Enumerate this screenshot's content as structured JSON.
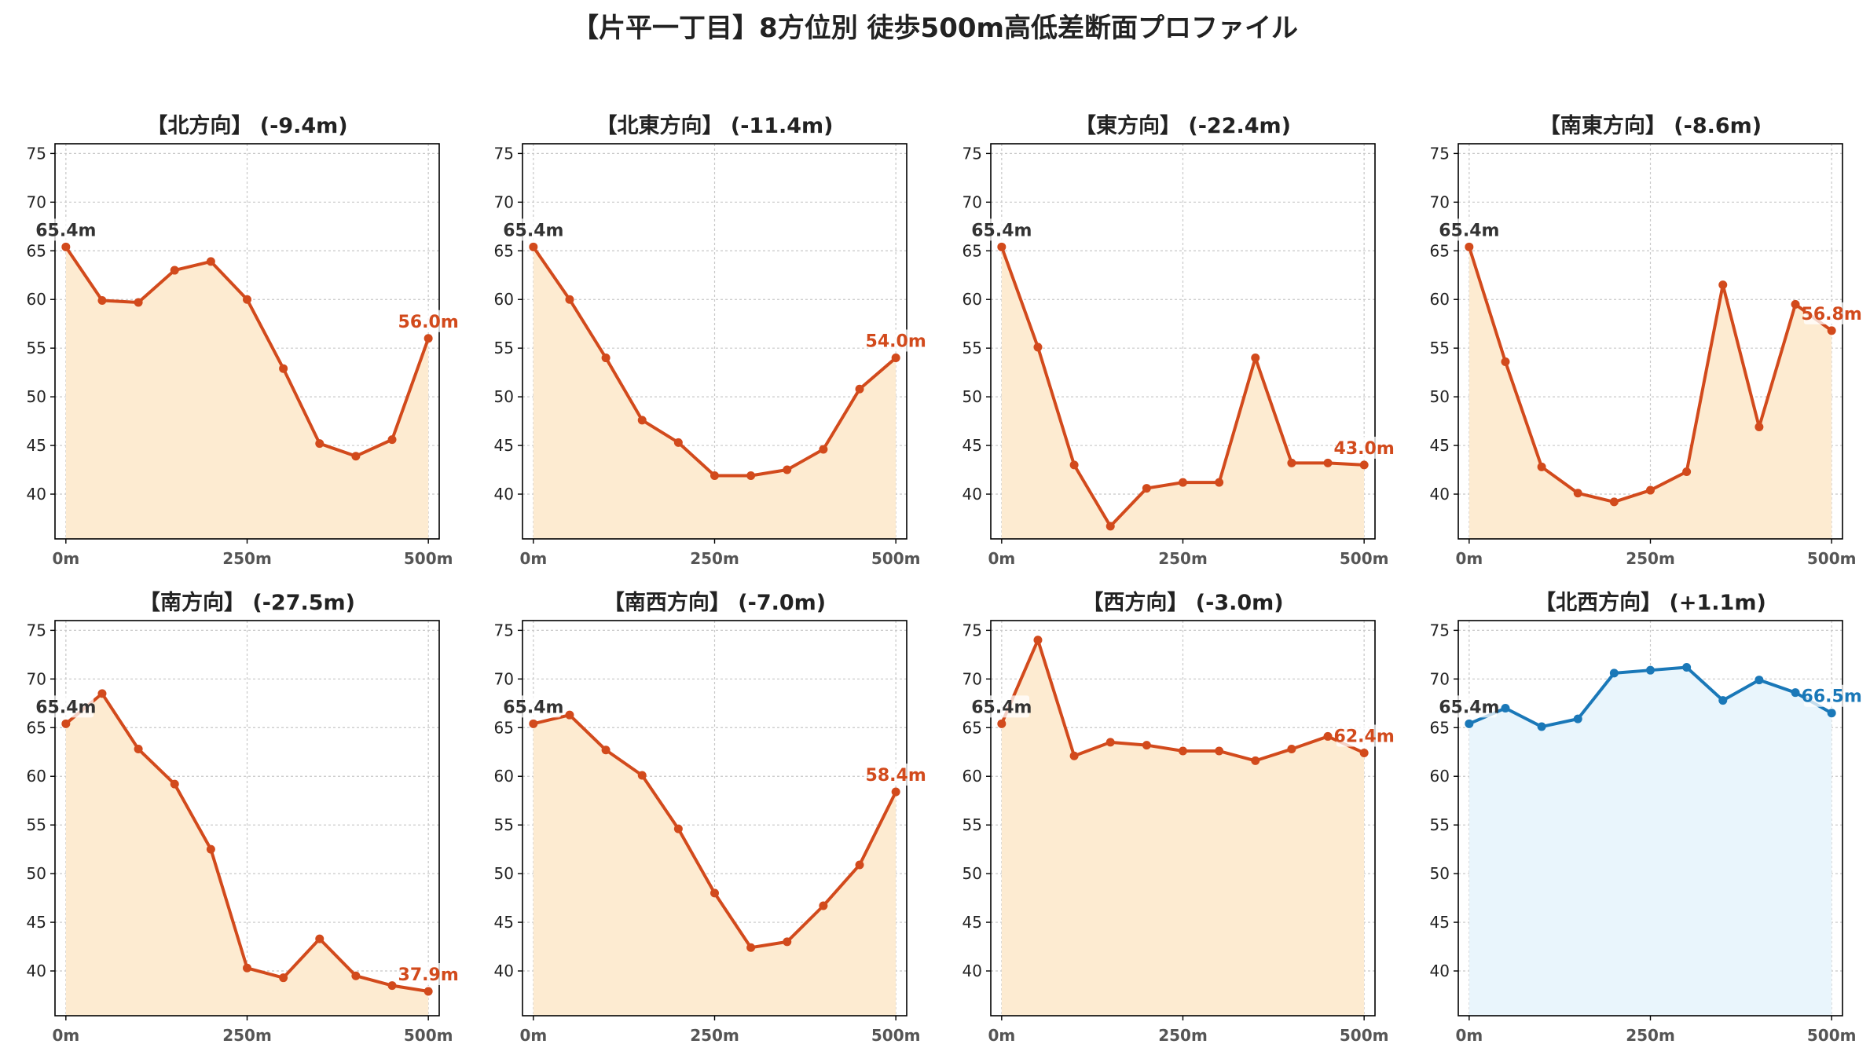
{
  "title": "【片平一丁目】8方位別 徒歩500m高低差断面プロファイル",
  "colors": {
    "down_line": "#d24a1c",
    "down_fill": "#fdebd1",
    "up_line": "#1a78b8",
    "up_fill": "#e9f5fc",
    "start_label": "#333333",
    "grid": "#c8c8c8"
  },
  "chart_data": [
    {
      "type": "line",
      "title": "【北方向】 (-9.4m)",
      "direction": "down",
      "x": [
        0,
        50,
        100,
        150,
        200,
        250,
        300,
        350,
        400,
        450,
        500
      ],
      "y": [
        65.4,
        59.9,
        59.7,
        63.0,
        63.9,
        60.0,
        52.9,
        45.2,
        43.9,
        45.6,
        56.0
      ],
      "start_label": "65.4m",
      "end_label": "56.0m",
      "xticks": [
        "0m",
        "250m",
        "500m"
      ],
      "yticks": [
        40,
        45,
        50,
        55,
        60,
        65,
        70,
        75
      ],
      "xlim": [
        -15,
        515
      ],
      "ylim": [
        35.4,
        76.0
      ],
      "grid": true
    },
    {
      "type": "line",
      "title": "【北東方向】 (-11.4m)",
      "direction": "down",
      "x": [
        0,
        50,
        100,
        150,
        200,
        250,
        300,
        350,
        400,
        450,
        500
      ],
      "y": [
        65.4,
        60.0,
        54.0,
        47.6,
        45.3,
        41.9,
        41.9,
        42.5,
        44.6,
        50.8,
        54.0
      ],
      "start_label": "65.4m",
      "end_label": "54.0m",
      "xticks": [
        "0m",
        "250m",
        "500m"
      ],
      "yticks": [
        40,
        45,
        50,
        55,
        60,
        65,
        70,
        75
      ],
      "xlim": [
        -15,
        515
      ],
      "ylim": [
        35.4,
        76.0
      ],
      "grid": true
    },
    {
      "type": "line",
      "title": "【東方向】 (-22.4m)",
      "direction": "down",
      "x": [
        0,
        50,
        100,
        150,
        200,
        250,
        300,
        350,
        400,
        450,
        500
      ],
      "y": [
        65.4,
        55.1,
        43.0,
        36.7,
        40.6,
        41.2,
        41.2,
        54.0,
        43.2,
        43.2,
        43.0
      ],
      "start_label": "65.4m",
      "end_label": "43.0m",
      "xticks": [
        "0m",
        "250m",
        "500m"
      ],
      "yticks": [
        40,
        45,
        50,
        55,
        60,
        65,
        70,
        75
      ],
      "xlim": [
        -15,
        515
      ],
      "ylim": [
        35.4,
        76.0
      ],
      "grid": true
    },
    {
      "type": "line",
      "title": "【南東方向】 (-8.6m)",
      "direction": "down",
      "x": [
        0,
        50,
        100,
        150,
        200,
        250,
        300,
        350,
        400,
        450,
        500
      ],
      "y": [
        65.4,
        53.6,
        42.8,
        40.1,
        39.2,
        40.4,
        42.3,
        61.5,
        46.9,
        59.5,
        56.8
      ],
      "start_label": "65.4m",
      "end_label": "56.8m",
      "xticks": [
        "0m",
        "250m",
        "500m"
      ],
      "yticks": [
        40,
        45,
        50,
        55,
        60,
        65,
        70,
        75
      ],
      "xlim": [
        -15,
        515
      ],
      "ylim": [
        35.4,
        76.0
      ],
      "grid": true
    },
    {
      "type": "line",
      "title": "【南方向】 (-27.5m)",
      "direction": "down",
      "x": [
        0,
        50,
        100,
        150,
        200,
        250,
        300,
        350,
        400,
        450,
        500
      ],
      "y": [
        65.4,
        68.5,
        62.8,
        59.2,
        52.5,
        40.3,
        39.3,
        43.3,
        39.5,
        38.5,
        37.9
      ],
      "start_label": "65.4m",
      "end_label": "37.9m",
      "xticks": [
        "0m",
        "250m",
        "500m"
      ],
      "yticks": [
        40,
        45,
        50,
        55,
        60,
        65,
        70,
        75
      ],
      "xlim": [
        -15,
        515
      ],
      "ylim": [
        35.4,
        76.0
      ],
      "grid": true
    },
    {
      "type": "line",
      "title": "【南西方向】 (-7.0m)",
      "direction": "down",
      "x": [
        0,
        50,
        100,
        150,
        200,
        250,
        300,
        350,
        400,
        450,
        500
      ],
      "y": [
        65.4,
        66.3,
        62.7,
        60.1,
        54.6,
        48.0,
        42.4,
        43.0,
        46.7,
        50.9,
        58.4
      ],
      "start_label": "65.4m",
      "end_label": "58.4m",
      "xticks": [
        "0m",
        "250m",
        "500m"
      ],
      "yticks": [
        40,
        45,
        50,
        55,
        60,
        65,
        70,
        75
      ],
      "xlim": [
        -15,
        515
      ],
      "ylim": [
        35.4,
        76.0
      ],
      "grid": true
    },
    {
      "type": "line",
      "title": "【西方向】 (-3.0m)",
      "direction": "down",
      "x": [
        0,
        50,
        100,
        150,
        200,
        250,
        300,
        350,
        400,
        450,
        500
      ],
      "y": [
        65.4,
        74.0,
        62.1,
        63.5,
        63.2,
        62.6,
        62.6,
        61.6,
        62.8,
        64.1,
        62.4
      ],
      "start_label": "65.4m",
      "end_label": "62.4m",
      "xticks": [
        "0m",
        "250m",
        "500m"
      ],
      "yticks": [
        40,
        45,
        50,
        55,
        60,
        65,
        70,
        75
      ],
      "xlim": [
        -15,
        515
      ],
      "ylim": [
        35.4,
        76.0
      ],
      "grid": true
    },
    {
      "type": "line",
      "title": "【北西方向】 (+1.1m)",
      "direction": "up",
      "x": [
        0,
        50,
        100,
        150,
        200,
        250,
        300,
        350,
        400,
        450,
        500
      ],
      "y": [
        65.4,
        67.0,
        65.1,
        65.9,
        70.6,
        70.9,
        71.2,
        67.8,
        69.9,
        68.6,
        66.5
      ],
      "start_label": "65.4m",
      "end_label": "66.5m",
      "xticks": [
        "0m",
        "250m",
        "500m"
      ],
      "yticks": [
        40,
        45,
        50,
        55,
        60,
        65,
        70,
        75
      ],
      "xlim": [
        -15,
        515
      ],
      "ylim": [
        35.4,
        76.0
      ],
      "grid": true
    }
  ]
}
